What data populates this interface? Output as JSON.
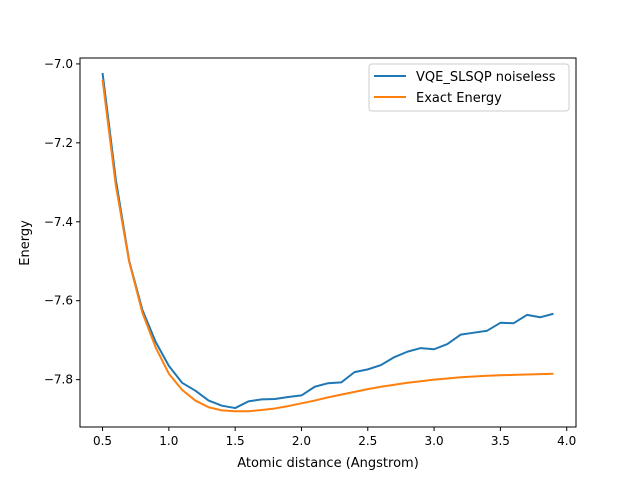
{
  "chart_data": {
    "type": "line",
    "title": "",
    "xlabel": "Atomic distance (Angstrom)",
    "ylabel": "Energy",
    "xlim": [
      0.33,
      4.07
    ],
    "ylim": [
      -7.92,
      -6.985
    ],
    "xticks": [
      0.5,
      1.0,
      1.5,
      2.0,
      2.5,
      3.0,
      3.5,
      4.0
    ],
    "xtick_labels": [
      "0.5",
      "1.0",
      "1.5",
      "2.0",
      "2.5",
      "3.0",
      "3.5",
      "4.0"
    ],
    "yticks": [
      -7.8,
      -7.6,
      -7.4,
      -7.2,
      -7.0
    ],
    "ytick_labels": [
      "−7.8",
      "−7.6",
      "−7.4",
      "−7.2",
      "−7.0"
    ],
    "grid": false,
    "legend_position": "top-right",
    "x": [
      0.5,
      0.6,
      0.7,
      0.8,
      0.9,
      1.0,
      1.1,
      1.2,
      1.3,
      1.4,
      1.5,
      1.6,
      1.7,
      1.8,
      1.9,
      2.0,
      2.1,
      2.2,
      2.3,
      2.4,
      2.5,
      2.6,
      2.7,
      2.8,
      2.9,
      3.0,
      3.1,
      3.2,
      3.3,
      3.4,
      3.5,
      3.6,
      3.7,
      3.8,
      3.9
    ],
    "series": [
      {
        "name": "VQE_SLSQP noiseless",
        "color": "#1f77b4",
        "values": [
          -7.023,
          -7.293,
          -7.498,
          -7.623,
          -7.704,
          -7.765,
          -7.808,
          -7.828,
          -7.853,
          -7.866,
          -7.872,
          -7.855,
          -7.85,
          -7.849,
          -7.844,
          -7.84,
          -7.818,
          -7.809,
          -7.807,
          -7.781,
          -7.774,
          -7.763,
          -7.743,
          -7.729,
          -7.72,
          -7.723,
          -7.71,
          -7.686,
          -7.681,
          -7.676,
          -7.656,
          -7.657,
          -7.636,
          -7.642,
          -7.633
        ]
      },
      {
        "name": "Exact Energy",
        "color": "#ff7f0e",
        "values": [
          -7.04,
          -7.308,
          -7.5,
          -7.63,
          -7.718,
          -7.785,
          -7.826,
          -7.853,
          -7.87,
          -7.878,
          -7.88,
          -7.88,
          -7.877,
          -7.873,
          -7.867,
          -7.86,
          -7.853,
          -7.845,
          -7.838,
          -7.831,
          -7.824,
          -7.818,
          -7.813,
          -7.808,
          -7.804,
          -7.8,
          -7.797,
          -7.794,
          -7.792,
          -7.79,
          -7.789,
          -7.788,
          -7.787,
          -7.786,
          -7.785
        ]
      }
    ]
  }
}
